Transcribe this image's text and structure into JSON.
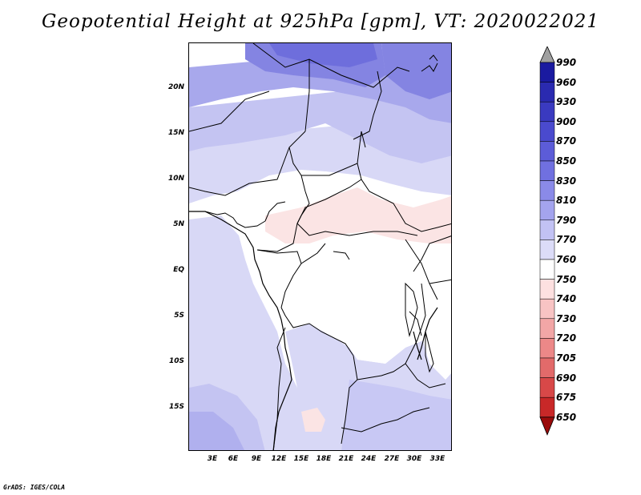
{
  "title": "Geopotential Height at 925hPa [gpm], VT: 2020022021",
  "footer": "GrADS: IGES/COLA",
  "map": {
    "projection": "latlon",
    "lon_range": [
      0,
      35
    ],
    "lat_range": [
      -20,
      25
    ],
    "y_ticks": [
      {
        "label": "20N",
        "lat": 20
      },
      {
        "label": "15N",
        "lat": 15
      },
      {
        "label": "10N",
        "lat": 10
      },
      {
        "label": "5N",
        "lat": 5
      },
      {
        "label": "EQ",
        "lat": 0
      },
      {
        "label": "5S",
        "lat": -5
      },
      {
        "label": "10S",
        "lat": -10
      },
      {
        "label": "15S",
        "lat": -15
      }
    ],
    "x_ticks": [
      {
        "label": "3E",
        "lon": 3
      },
      {
        "label": "6E",
        "lon": 6
      },
      {
        "label": "9E",
        "lon": 9
      },
      {
        "label": "12E",
        "lon": 12
      },
      {
        "label": "15E",
        "lon": 15
      },
      {
        "label": "18E",
        "lon": 18
      },
      {
        "label": "21E",
        "lon": 21
      },
      {
        "label": "24E",
        "lon": 24
      },
      {
        "label": "27E",
        "lon": 27
      },
      {
        "label": "30E",
        "lon": 30
      },
      {
        "label": "33E",
        "lon": 33
      }
    ]
  },
  "colorbar": {
    "levels": [
      "990",
      "960",
      "930",
      "900",
      "870",
      "850",
      "830",
      "810",
      "790",
      "770",
      "760",
      "750",
      "740",
      "730",
      "720",
      "705",
      "690",
      "675",
      "650"
    ],
    "top_arrow_color": "#a0a0a0",
    "colors": [
      "#1a1aa0",
      "#2a2ab0",
      "#3a3ac0",
      "#4a4ace",
      "#5c5cd8",
      "#7070e0",
      "#8a8ae8",
      "#a4a4ee",
      "#c2c2f4",
      "#dcdcf8",
      "#ffffff",
      "#fde0e0",
      "#f8c4c4",
      "#f2a6a6",
      "#ec8888",
      "#e26a6a",
      "#d84848",
      "#c82828",
      "#b01010",
      "#9a0a0a"
    ]
  },
  "palette": {
    "lavender_light": "#d8d8f6",
    "lavender": "#c4c4f2",
    "lavender_mid": "#a8a8ec",
    "purple_dark": "#8484e2",
    "purple_deep": "#6e6edc",
    "white": "#ffffff",
    "pink_light": "#fbe4e4",
    "border": "#000000"
  }
}
